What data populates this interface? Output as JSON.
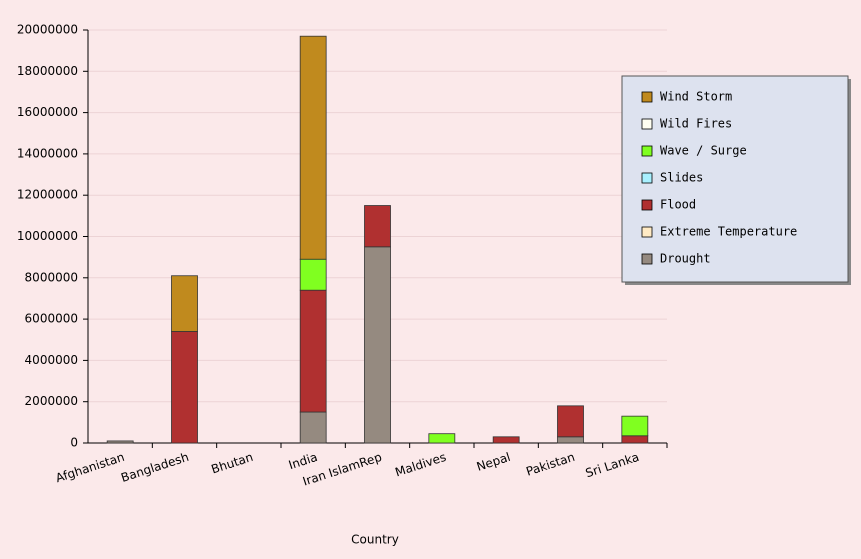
{
  "chart_data": {
    "type": "stacked-bar",
    "x_label": "Country",
    "categories": [
      "Afghanistan",
      "Bangladesh",
      "Bhutan",
      "India",
      "Iran IslamRep",
      "Maldives",
      "Nepal",
      "Pakistan",
      "Sri Lanka"
    ],
    "series": [
      {
        "name": "Wind Storm",
        "color": "#c08a1e",
        "values": [
          0,
          2700000,
          0,
          10800000,
          0,
          0,
          0,
          0,
          0
        ]
      },
      {
        "name": "Wild Fires",
        "color": "#fffff2",
        "values": [
          0,
          0,
          0,
          0,
          0,
          0,
          0,
          0,
          0
        ]
      },
      {
        "name": "Wave / Surge",
        "color": "#80ff20",
        "values": [
          0,
          0,
          0,
          1500000,
          0,
          450000,
          0,
          0,
          950000
        ]
      },
      {
        "name": "Slides",
        "color": "#a8f0ff",
        "values": [
          0,
          0,
          0,
          0,
          0,
          0,
          0,
          0,
          0
        ]
      },
      {
        "name": "Flood",
        "color": "#b03030",
        "values": [
          0,
          5400000,
          0,
          5900000,
          2000000,
          0,
          300000,
          1500000,
          350000
        ]
      },
      {
        "name": "Extreme Temperature",
        "color": "#ffeac4",
        "values": [
          0,
          0,
          0,
          0,
          0,
          0,
          0,
          0,
          0
        ]
      },
      {
        "name": "Drought",
        "color": "#958a80",
        "values": [
          100000,
          0,
          0,
          1500000,
          9500000,
          0,
          0,
          300000,
          0
        ]
      }
    ],
    "ylim": [
      0,
      20000000
    ],
    "yticks": [
      0,
      2000000,
      4000000,
      6000000,
      8000000,
      10000000,
      12000000,
      14000000,
      16000000,
      18000000,
      20000000
    ],
    "grid": true,
    "legend": "right"
  }
}
